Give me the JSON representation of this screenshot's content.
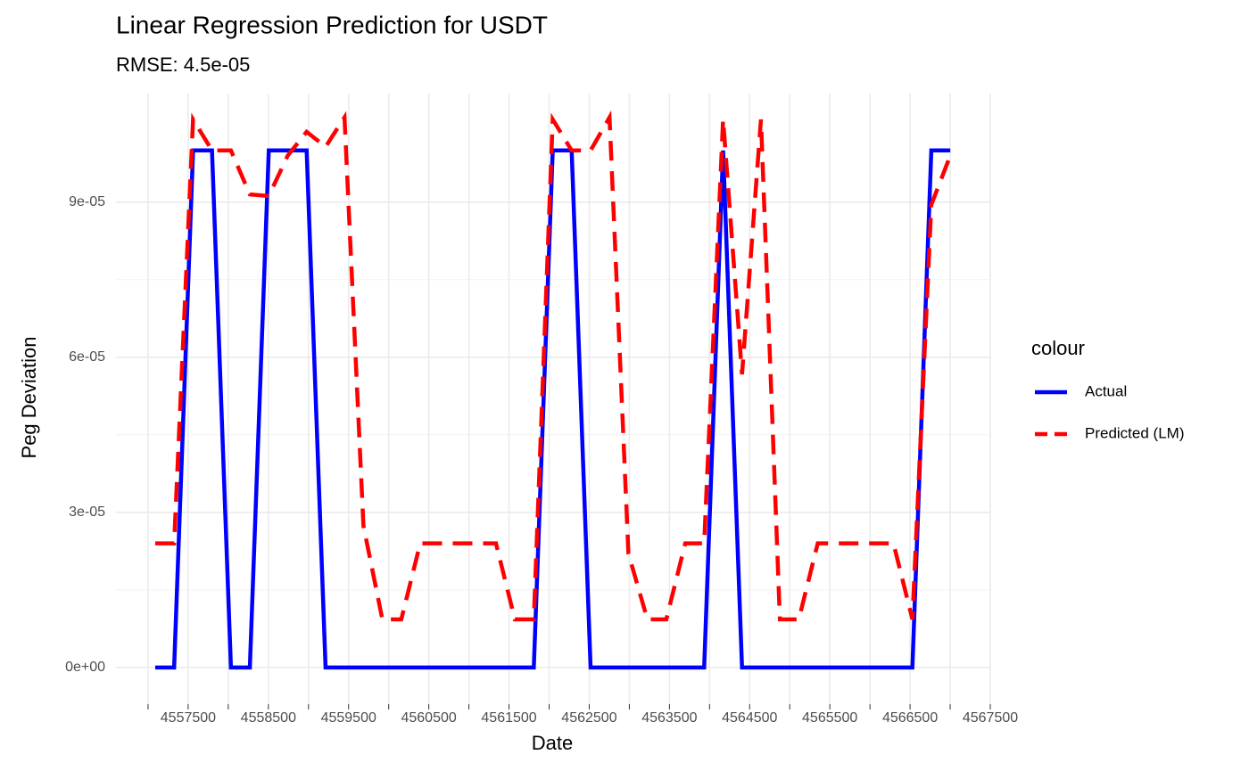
{
  "chart_data": {
    "type": "line",
    "title": "Linear Regression Prediction for USDT",
    "subtitle": "RMSE: 4.5e-05",
    "x_label": "Date",
    "y_label": "Peg Deviation",
    "legend_title": "colour",
    "legend_position": "right",
    "grid": true,
    "x": [
      4557089,
      4557325,
      4557561,
      4557797,
      4558033,
      4558269,
      4558505,
      4558741,
      4558977,
      4559213,
      4559449,
      4559685,
      4559921,
      4560157,
      4560393,
      4560629,
      4560865,
      4561101,
      4561337,
      4561573,
      4561809,
      4562045,
      4562281,
      4562517,
      4562753,
      4562989,
      4563225,
      4563461,
      4563697,
      4563933,
      4564169,
      4564405,
      4564641,
      4564877,
      4565113,
      4565349,
      4565585,
      4565821,
      4566057,
      4566293,
      4566529,
      4566765,
      4567001
    ],
    "series": [
      {
        "name": "Actual",
        "color": "#0000ff",
        "dash": "solid",
        "values": [
          0,
          0,
          0.0001,
          0.0001,
          0,
          0,
          0.0001,
          0.0001,
          0.0001,
          0,
          0,
          0,
          0,
          0,
          0,
          0,
          0,
          0,
          0,
          0,
          0,
          0.0001,
          0.0001,
          0,
          0,
          0,
          0,
          0,
          0,
          0,
          0.0001,
          0,
          0,
          0,
          0,
          0,
          0,
          0,
          0,
          0,
          0,
          0.0001,
          0.0001
        ]
      },
      {
        "name": "Predicted (LM)",
        "color": "#ff0000",
        "dash": "dashed",
        "values": [
          2.4e-05,
          2.4e-05,
          0.000106,
          0.0001,
          0.0001,
          9.15e-05,
          9.12e-05,
          9.9e-05,
          0.0001036,
          0.0001007,
          0.0001064,
          2.74e-05,
          9.3e-06,
          9.3e-06,
          2.4e-05,
          2.4e-05,
          2.4e-05,
          2.4e-05,
          2.4e-05,
          9.3e-06,
          9.3e-06,
          0.000106,
          0.0001,
          0.0001,
          0.0001064,
          2.2e-05,
          9.3e-06,
          9.3e-06,
          2.4e-05,
          2.4e-05,
          0.000106,
          5.67e-05,
          0.000106,
          9.3e-06,
          9.3e-06,
          2.4e-05,
          2.4e-05,
          2.4e-05,
          2.4e-05,
          2.4e-05,
          9.3e-06,
          8.95e-05,
          9.9e-05
        ]
      }
    ],
    "xlim": [
      4556600,
      4567500
    ],
    "xticks": [
      4557500,
      4558500,
      4559500,
      4560500,
      4561500,
      4562500,
      4563500,
      4564500,
      4565500,
      4566500,
      4567500
    ],
    "ylim": [
      -7.1e-06,
      0.000111
    ],
    "yticks": [
      {
        "value": 0,
        "label": "0e+00"
      },
      {
        "value": 3e-05,
        "label": "3e-05"
      },
      {
        "value": 6e-05,
        "label": "6e-05"
      },
      {
        "value": 9e-05,
        "label": "9e-05"
      }
    ]
  }
}
